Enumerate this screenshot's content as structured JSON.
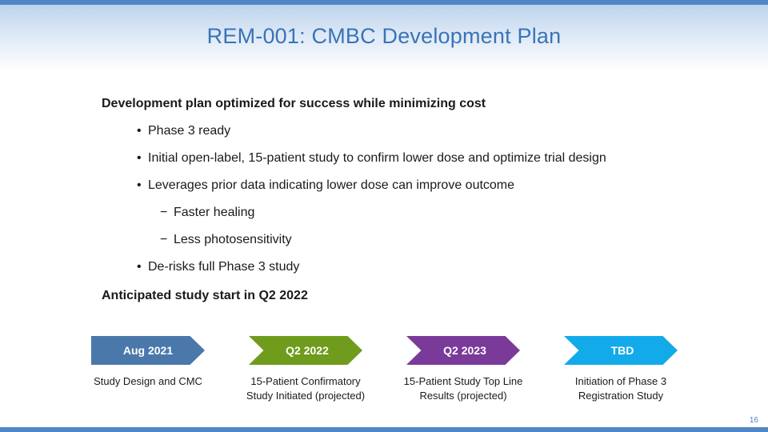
{
  "slide": {
    "title": "REM-001: CMBC Development Plan",
    "page_number": "16"
  },
  "content": {
    "heading1": "Development plan optimized for success while minimizing cost",
    "bullets": [
      "Phase 3 ready",
      "Initial open-label, 15-patient study to confirm lower dose and optimize trial design",
      "Leverages prior data indicating lower dose can improve outcome"
    ],
    "sub_bullets": [
      "Faster healing",
      "Less photosensitivity"
    ],
    "bullet_last": "De-risks full Phase 3 study",
    "heading2": "Anticipated study start in Q2 2022",
    "bullet_mark": "•",
    "sub_mark": "−"
  },
  "timeline": [
    {
      "label": "Aug 2021",
      "color": "#4a78ab",
      "caption_lines": [
        "Study Design and CMC"
      ]
    },
    {
      "label": "Q2 2022",
      "color": "#6f9c1c",
      "caption_lines": [
        "15-Patient Confirmatory",
        "Study Initiated (projected)"
      ]
    },
    {
      "label": "Q2 2023",
      "color": "#7a3a9a",
      "caption_lines": [
        "15-Patient Study Top Line",
        "Results (projected)"
      ]
    },
    {
      "label": "TBD",
      "color": "#13aaea",
      "caption_lines": [
        "Initiation of Phase 3",
        "Registration Study"
      ]
    }
  ]
}
